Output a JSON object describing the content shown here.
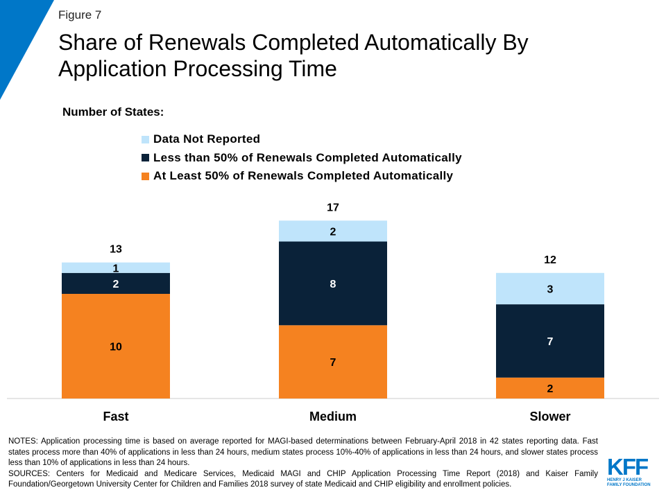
{
  "figure_label": "Figure 7",
  "title": "Share of Renewals Completed Automatically By Application Processing Time",
  "colors": {
    "accent_corner": "#0077c8",
    "data_not_reported": "#bfe4fb",
    "less_than_50": "#0a2239",
    "at_least_50": "#f58220",
    "axis": "#cccccc"
  },
  "legend_title": "Number of States:",
  "chart_data": {
    "type": "bar",
    "stacked": true,
    "categories": [
      "Fast",
      "Medium",
      "Slower"
    ],
    "series": [
      {
        "name": "At Least 50% of Renewals Completed Automatically",
        "values": [
          10,
          7,
          2
        ]
      },
      {
        "name": "Less than 50% of Renewals Completed Automatically",
        "values": [
          2,
          8,
          7
        ]
      },
      {
        "name": "Data Not Reported",
        "values": [
          1,
          2,
          3
        ]
      }
    ],
    "totals": [
      13,
      17,
      12
    ],
    "legend_order": [
      "Data Not Reported",
      "Less than 50% of Renewals Completed Automatically",
      "At Least 50% of Renewals Completed Automatically"
    ],
    "ylim": [
      0,
      17
    ],
    "grid": false,
    "legend_position": "top"
  },
  "notes": "NOTES: Application processing time is based on average reported for MAGI-based determinations between February-April 2018 in 42 states reporting data. Fast states process more than 40% of applications in less than 24 hours, medium states process 10%-40% of applications in less than 24 hours, and slower states process less than 10% of applications in less than 24 hours.",
  "sources": "SOURCES: Centers for Medicaid and Medicare Services, Medicaid MAGI and CHIP Application Processing Time Report (2018) and Kaiser Family Foundation/Georgetown University Center for Children and Families 2018 survey of state Medicaid and CHIP eligibility and enrollment policies.",
  "logo": {
    "mark": "KFF",
    "line1": "HENRY J KAISER",
    "line2": "FAMILY FOUNDATION"
  }
}
